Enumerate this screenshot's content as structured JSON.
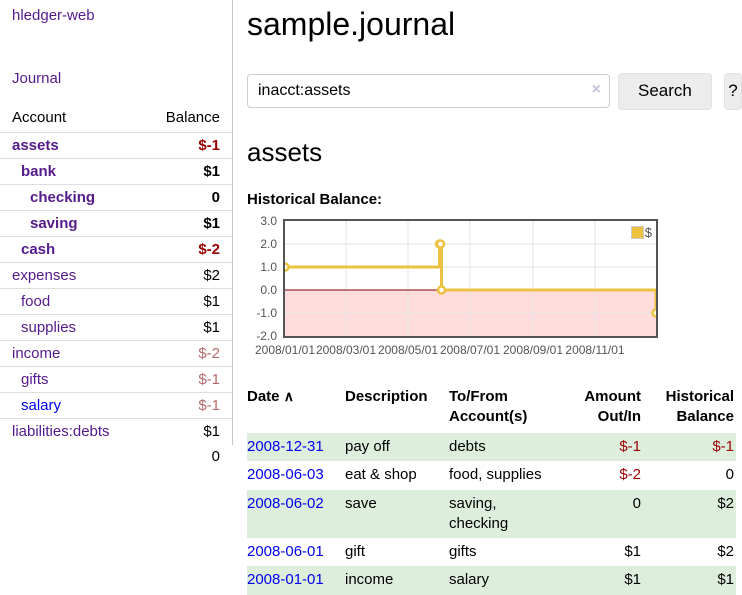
{
  "sidebar": {
    "brand": "hledger-web",
    "journal_link": "Journal",
    "accounts": {
      "header": {
        "account": "Account",
        "balance": "Balance"
      },
      "rows": [
        {
          "name": "assets",
          "balance": "$-1",
          "indent": 1,
          "bold": true
        },
        {
          "name": "bank",
          "balance": "$1",
          "indent": 2,
          "bold": true
        },
        {
          "name": "checking",
          "balance": "0",
          "indent": 3,
          "bold": true
        },
        {
          "name": "saving",
          "balance": "$1",
          "indent": 3,
          "bold": true
        },
        {
          "name": "cash",
          "balance": "$-2",
          "indent": 2,
          "bold": true
        },
        {
          "name": "expenses",
          "balance": "$2",
          "indent": 1,
          "bold": false
        },
        {
          "name": "food",
          "balance": "$1",
          "indent": 2,
          "bold": false
        },
        {
          "name": "supplies",
          "balance": "$1",
          "indent": 2,
          "bold": false
        },
        {
          "name": "income",
          "balance": "$-2",
          "indent": 1,
          "bold": false
        },
        {
          "name": "gifts",
          "balance": "$-1",
          "indent": 2,
          "bold": false
        },
        {
          "name": "salary",
          "balance": "$-1",
          "indent": 2,
          "bold": false,
          "unvisited_link": true
        },
        {
          "name": "liabilities:debts",
          "balance": "$1",
          "indent": 1,
          "bold": false
        }
      ],
      "total": "0"
    }
  },
  "main": {
    "title": "sample.journal",
    "search": {
      "value": "inacct:assets",
      "clear_icon": "×",
      "search_button": "Search",
      "help_button": "?"
    },
    "heading": "assets",
    "chart_heading": "Historical Balance:"
  },
  "chart_data": {
    "type": "line",
    "title": "Historical Balance:",
    "steps": true,
    "xlim": [
      "2008-01-01",
      "2008-12-31"
    ],
    "ylim": [
      -2,
      3
    ],
    "x_ticks": [
      "2008/01/01",
      "2008/03/01",
      "2008/05/01",
      "2008/07/01",
      "2008/09/01",
      "2008/11/01"
    ],
    "y_ticks": [
      "3.0",
      "2.0",
      "1.0",
      "0.0",
      "-1.0",
      "-2.0"
    ],
    "legend": {
      "label": "$",
      "position": "top-right"
    },
    "series": [
      {
        "name": "$",
        "color": "#edc240",
        "points": [
          {
            "x": "2008-01-01",
            "y": 1
          },
          {
            "x": "2008-06-01",
            "y": 2
          },
          {
            "x": "2008-06-02",
            "y": 2
          },
          {
            "x": "2008-06-03",
            "y": 0
          },
          {
            "x": "2008-12-31",
            "y": -1
          }
        ]
      }
    ],
    "negative_region_color": "#ffdddd",
    "zero_line_color": "#800000",
    "grid_color": "#e3e3e3",
    "border_color": "#545454"
  },
  "register": {
    "headers": {
      "date": "Date",
      "sort_icon": "∧",
      "description": "Description",
      "accounts": "To/From Account(s)",
      "amount": "Amount Out/In",
      "balance": "Historical Balance"
    },
    "rows": [
      {
        "date": "2008-12-31",
        "description": "pay off",
        "accounts": "debts",
        "amount": "$-1",
        "balance": "$-1"
      },
      {
        "date": "2008-06-03",
        "description": "eat & shop",
        "accounts": "food, supplies",
        "amount": "$-2",
        "balance": "0"
      },
      {
        "date": "2008-06-02",
        "description": "save",
        "accounts": "saving, checking",
        "amount": "0",
        "balance": "$2"
      },
      {
        "date": "2008-06-01",
        "description": "gift",
        "accounts": "gifts",
        "amount": "$1",
        "balance": "$2"
      },
      {
        "date": "2008-01-01",
        "description": "income",
        "accounts": "salary",
        "amount": "$1",
        "balance": "$1"
      }
    ]
  }
}
